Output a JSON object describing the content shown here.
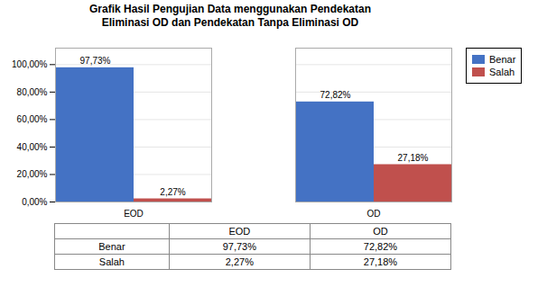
{
  "chart_data": {
    "type": "bar",
    "title": "Grafik Hasil Pengujian Data menggunakan Pendekatan\nEliminasi OD dan Pendekatan Tanpa Eliminasi OD",
    "categories": [
      "EOD",
      "OD"
    ],
    "series": [
      {
        "name": "Benar",
        "color": "#4472C4",
        "values": [
          97.73,
          72.82
        ],
        "value_labels": [
          "97,73%",
          "72,82%"
        ]
      },
      {
        "name": "Salah",
        "color": "#C0504D",
        "values": [
          2.27,
          27.18
        ],
        "value_labels": [
          "2,27%",
          "27,18%"
        ]
      }
    ],
    "ylim": [
      0,
      112
    ],
    "yticks": [
      {
        "value": 0,
        "label": "0,00%"
      },
      {
        "value": 20,
        "label": "20,00%"
      },
      {
        "value": 40,
        "label": "40,00%"
      },
      {
        "value": 60,
        "label": "60,00%"
      },
      {
        "value": 80,
        "label": "80,00%"
      },
      {
        "value": 100,
        "label": "100,00%"
      }
    ],
    "grid": true,
    "legend": "right",
    "data_labels": true
  }
}
